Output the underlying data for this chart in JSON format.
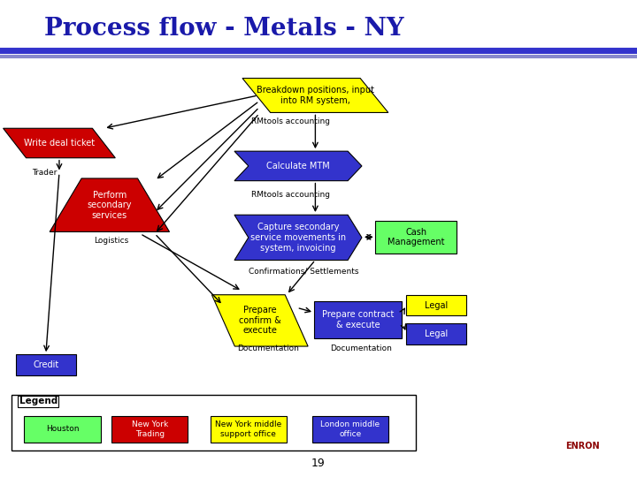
{
  "title": "Process flow - Metals - NY",
  "title_color": "#1a1aaa",
  "title_fontsize": 20,
  "bg_color": "#ffffff",
  "header_bar_color1": "#3333cc",
  "header_bar_color2": "#8888cc",
  "page_number": "19",
  "legend": {
    "items": [
      {
        "label": "Houston",
        "color": "#66ff66",
        "text_color": "#000000"
      },
      {
        "label": "New York\nTrading",
        "color": "#cc0000",
        "text_color": "#ffffff"
      },
      {
        "label": "New York middle\nsupport office",
        "color": "#ffff00",
        "text_color": "#000000"
      },
      {
        "label": "London middle\noffice",
        "color": "#3333cc",
        "text_color": "#ffffff"
      }
    ]
  }
}
